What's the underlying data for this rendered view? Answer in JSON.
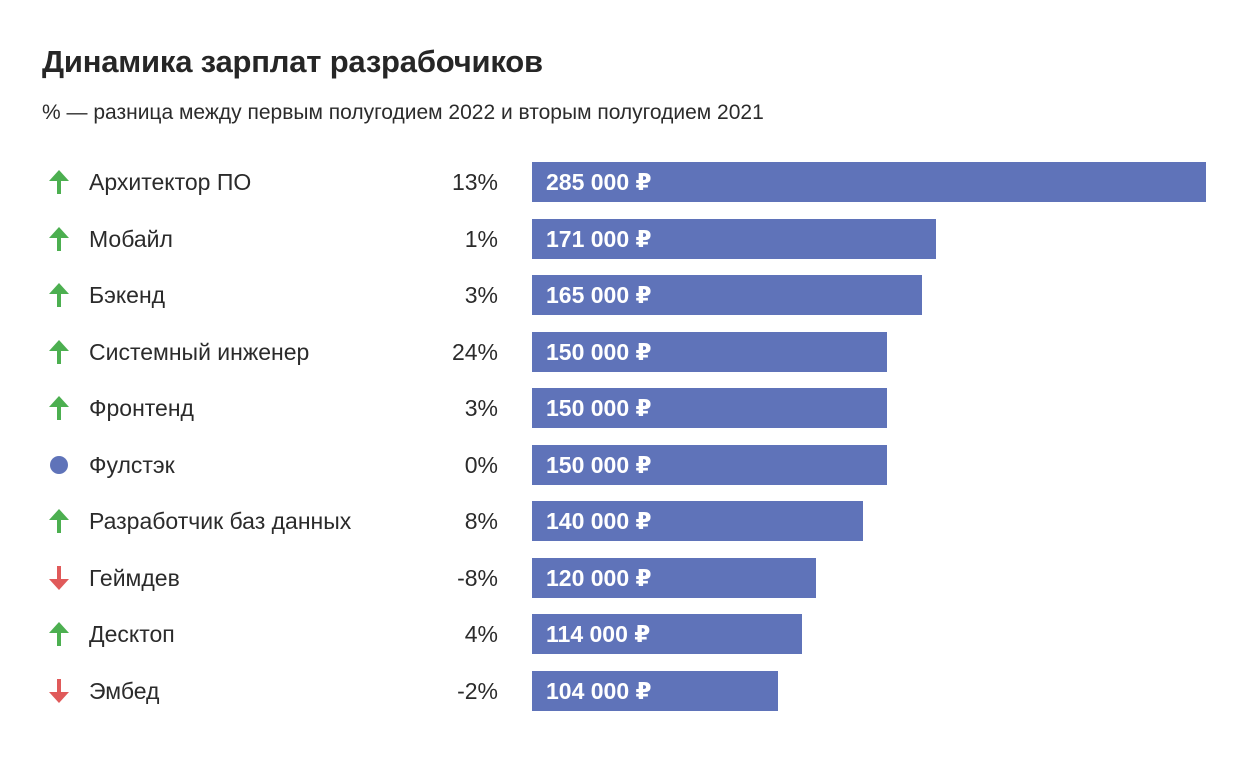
{
  "header": {
    "title": "Динамика зарплат разрабочиков",
    "subtitle": "% — разница между первым полугодием 2022 и вторым полугодием 2021"
  },
  "colors": {
    "bar": "#5f73b9",
    "up": "#4caf50",
    "down": "#e05a5a",
    "neutral": "#5f73b9"
  },
  "chart_data": {
    "type": "bar",
    "orientation": "horizontal",
    "title": "Динамика зарплат разрабочиков",
    "subtitle": "% — разница между первым полугодием 2022 и вторым полугодием 2021",
    "categories": [
      "Архитектор ПО",
      "Мобайл",
      "Бэкенд",
      "Системный инженер",
      "Фронтенд",
      "Фулстэк",
      "Разработчик баз данных",
      "Геймдев",
      "Десктоп",
      "Эмбед"
    ],
    "values": [
      285000,
      171000,
      165000,
      150000,
      150000,
      150000,
      140000,
      120000,
      114000,
      104000
    ],
    "value_labels": [
      "285 000 ₽",
      "171 000 ₽",
      "165 000 ₽",
      "150 000 ₽",
      "150 000 ₽",
      "150 000 ₽",
      "140 000 ₽",
      "120 000 ₽",
      "114 000 ₽",
      "104 000 ₽"
    ],
    "change_labels": [
      "13%",
      "1%",
      "3%",
      "24%",
      "3%",
      "0%",
      "8%",
      "-8%",
      "4%",
      "-2%"
    ],
    "trend_icons": [
      "arrow-up-icon",
      "arrow-up-icon",
      "arrow-up-icon",
      "arrow-up-icon",
      "arrow-up-icon",
      "dot-icon",
      "arrow-up-icon",
      "arrow-down-icon",
      "arrow-up-icon",
      "arrow-down-icon"
    ],
    "xlim": [
      0,
      285000
    ],
    "grid": false,
    "legend": "none"
  }
}
